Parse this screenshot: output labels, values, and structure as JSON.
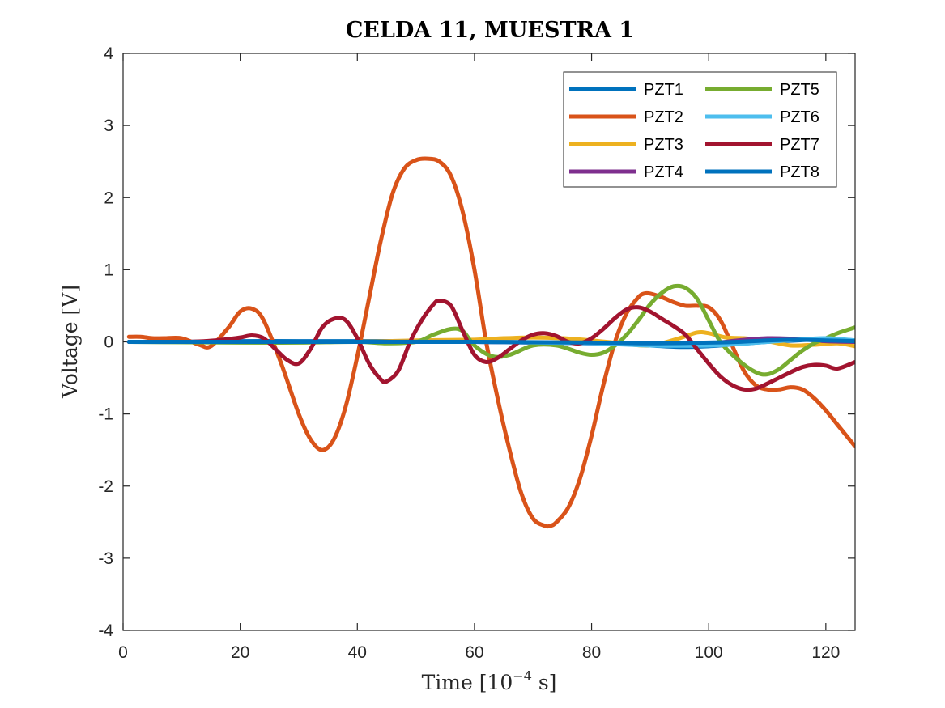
{
  "chart_data": {
    "type": "line",
    "title": "CELDA 11, MUESTRA 1",
    "xlabel_main": "Time [10",
    "xlabel_sup": "−4",
    "xlabel_tail": " s]",
    "ylabel": "Voltage [V]",
    "xlim": [
      0,
      125
    ],
    "ylim": [
      -4,
      4
    ],
    "xticks": [
      0,
      20,
      40,
      60,
      80,
      100,
      120
    ],
    "yticks": [
      -4,
      -3,
      -2,
      -1,
      0,
      1,
      2,
      3,
      4
    ],
    "xtick_labels": [
      "0",
      "20",
      "40",
      "60",
      "80",
      "100",
      "120"
    ],
    "ytick_labels": [
      "-4",
      "-3",
      "-2",
      "-1",
      "0",
      "1",
      "2",
      "3",
      "4"
    ],
    "grid": false,
    "legend_position": "top-right",
    "legend_columns": 2,
    "series": [
      {
        "name": "PZT1",
        "color": "#0072BD",
        "x": [
          1,
          10,
          20,
          30,
          40,
          50,
          60,
          70,
          80,
          85,
          90,
          95,
          100,
          105,
          110,
          115,
          120,
          125
        ],
        "y": [
          0,
          0,
          0.01,
          0.01,
          0.01,
          0.01,
          0,
          -0.01,
          -0.02,
          -0.03,
          -0.05,
          -0.07,
          -0.06,
          -0.03,
          0,
          0.02,
          0.04,
          0.02
        ]
      },
      {
        "name": "PZT2",
        "color": "#D95319",
        "x": [
          1,
          3,
          5,
          7,
          10,
          13,
          15,
          18,
          20,
          22,
          24,
          27,
          30,
          32,
          34,
          36,
          38,
          40,
          42,
          44,
          46,
          48,
          50,
          52,
          54,
          56,
          58,
          60,
          62,
          64,
          66,
          68,
          70,
          72,
          73,
          74,
          76,
          78,
          80,
          82,
          84,
          86,
          88,
          89,
          90,
          92,
          94,
          96,
          98,
          100,
          102,
          104,
          106,
          108,
          110,
          112,
          114,
          116,
          118,
          120,
          122,
          125
        ],
        "y": [
          0.07,
          0.07,
          0.05,
          0.05,
          0.05,
          -0.04,
          -0.06,
          0.2,
          0.42,
          0.46,
          0.3,
          -0.3,
          -1.0,
          -1.35,
          -1.5,
          -1.35,
          -0.9,
          -0.2,
          0.6,
          1.4,
          2.05,
          2.4,
          2.52,
          2.54,
          2.5,
          2.3,
          1.8,
          1.0,
          0.0,
          -0.8,
          -1.5,
          -2.1,
          -2.45,
          -2.55,
          -2.55,
          -2.5,
          -2.3,
          -1.9,
          -1.3,
          -0.6,
          0.0,
          0.4,
          0.62,
          0.67,
          0.67,
          0.62,
          0.55,
          0.5,
          0.5,
          0.48,
          0.3,
          -0.05,
          -0.4,
          -0.6,
          -0.66,
          -0.66,
          -0.63,
          -0.66,
          -0.78,
          -0.95,
          -1.15,
          -1.45
        ]
      },
      {
        "name": "PZT3",
        "color": "#EDB120",
        "x": [
          1,
          20,
          40,
          50,
          60,
          65,
          70,
          75,
          80,
          85,
          90,
          95,
          98,
          100,
          103,
          106,
          110,
          114,
          118,
          122,
          125
        ],
        "y": [
          0,
          0,
          0,
          0.02,
          0.03,
          0.05,
          0.06,
          0.05,
          0.02,
          -0.02,
          -0.05,
          0.05,
          0.13,
          0.12,
          0.06,
          0.05,
          0.01,
          -0.05,
          -0.04,
          -0.02,
          -0.06
        ]
      },
      {
        "name": "PZT4",
        "color": "#7E2F8E",
        "x": [
          1,
          20,
          40,
          60,
          80,
          90,
          100,
          105,
          110,
          115,
          120,
          125
        ],
        "y": [
          0,
          0,
          0,
          0,
          -0.02,
          -0.04,
          -0.02,
          0.02,
          0.05,
          0.04,
          0.01,
          0.0
        ]
      },
      {
        "name": "PZT5",
        "color": "#77AC30",
        "x": [
          1,
          20,
          30,
          40,
          45,
          50,
          53,
          56,
          58,
          60,
          63,
          66,
          70,
          74,
          78,
          80,
          82,
          84,
          86,
          88,
          90,
          92,
          94,
          96,
          98,
          100,
          102,
          105,
          108,
          110,
          112,
          114,
          116,
          118,
          120,
          122,
          125
        ],
        "y": [
          0,
          -0.01,
          -0.01,
          0.0,
          -0.02,
          0.0,
          0.1,
          0.18,
          0.15,
          -0.05,
          -0.2,
          -0.18,
          -0.05,
          -0.05,
          -0.15,
          -0.18,
          -0.15,
          -0.05,
          0.1,
          0.3,
          0.52,
          0.68,
          0.77,
          0.75,
          0.6,
          0.3,
          0.0,
          -0.25,
          -0.42,
          -0.45,
          -0.38,
          -0.25,
          -0.12,
          -0.02,
          0.05,
          0.12,
          0.2
        ]
      },
      {
        "name": "PZT6",
        "color": "#4DBEEE",
        "x": [
          1,
          20,
          40,
          60,
          80,
          90,
          100,
          105,
          110,
          115,
          120,
          125
        ],
        "y": [
          0,
          0,
          0,
          0,
          -0.02,
          -0.05,
          -0.05,
          -0.03,
          0.0,
          0.03,
          0.05,
          0.02
        ]
      },
      {
        "name": "PZT7",
        "color": "#A2142F",
        "x": [
          1,
          10,
          14,
          17,
          20,
          22,
          24,
          26,
          28,
          30,
          32,
          34,
          36,
          38,
          40,
          42,
          44,
          45,
          47,
          49,
          51,
          53,
          54,
          56,
          58,
          60,
          62,
          64,
          66,
          68,
          70,
          72,
          74,
          76,
          78,
          80,
          82,
          84,
          86,
          88,
          90,
          92,
          94,
          96,
          98,
          100,
          102,
          104,
          106,
          108,
          110,
          112,
          114,
          116,
          118,
          120,
          122,
          125
        ],
        "y": [
          0,
          0,
          0.01,
          0.03,
          0.06,
          0.09,
          0.05,
          -0.1,
          -0.25,
          -0.3,
          -0.1,
          0.2,
          0.32,
          0.3,
          0.05,
          -0.3,
          -0.52,
          -0.55,
          -0.4,
          0.0,
          0.3,
          0.52,
          0.57,
          0.5,
          0.15,
          -0.18,
          -0.28,
          -0.22,
          -0.1,
          0.02,
          0.1,
          0.12,
          0.08,
          0.0,
          -0.02,
          0.05,
          0.18,
          0.33,
          0.45,
          0.48,
          0.42,
          0.32,
          0.22,
          0.1,
          -0.1,
          -0.3,
          -0.48,
          -0.6,
          -0.66,
          -0.65,
          -0.58,
          -0.5,
          -0.42,
          -0.35,
          -0.32,
          -0.33,
          -0.37,
          -0.28
        ]
      },
      {
        "name": "PZT8",
        "color": "#0072BD",
        "x": [
          1,
          20,
          40,
          60,
          80,
          90,
          100,
          105,
          110,
          115,
          120,
          125
        ],
        "y": [
          0,
          0,
          0,
          0,
          -0.01,
          -0.02,
          -0.01,
          0.0,
          0.02,
          0.03,
          0.02,
          0.01
        ]
      }
    ]
  }
}
